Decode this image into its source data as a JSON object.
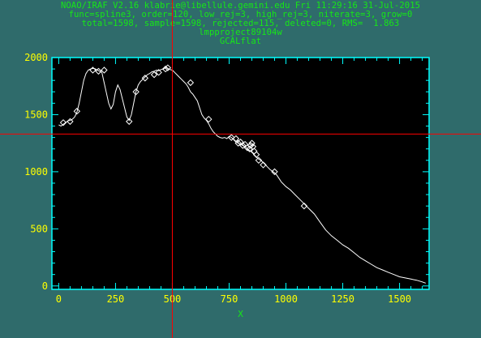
{
  "window": {
    "background": "#2f6b6b",
    "header_color": "#16e816",
    "cursor_color": "#ff0000",
    "axis_color": "#00ffff",
    "tick_label_color": "#ffff00",
    "xlabel_color": "#16e816"
  },
  "header": {
    "line1": "NOAO/IRAF V2.16 klabrie@libellule.gemini.edu Fri 11:29:16 31-Jul-2015",
    "line2": "func=spline3, order=120, low_rej=3, high_rej=3, niterate=3, grow=0",
    "line3": "total=1598, sample=1598, rejected=115, deleted=0, RMS=  1.863",
    "line4": "lmpproject89104w",
    "line5": "GCALflat"
  },
  "chart_data": {
    "type": "line",
    "xlabel": "X",
    "ylabel": "",
    "xlim": [
      -30,
      1630
    ],
    "ylim": [
      -30,
      2000
    ],
    "xticks": [
      0,
      250,
      500,
      750,
      1000,
      1250,
      1500
    ],
    "yticks": [
      0,
      500,
      1000,
      1500,
      2000
    ],
    "series": [
      {
        "x": [
          0,
          10,
          20,
          30,
          40,
          50,
          60,
          70,
          80,
          90,
          100,
          110,
          120,
          130,
          140,
          150,
          160,
          170,
          180,
          190,
          200,
          210,
          220,
          230,
          240,
          250,
          260,
          270,
          280,
          290,
          300,
          310,
          320,
          330,
          340,
          350,
          360,
          370,
          380,
          390,
          400,
          410,
          420,
          430,
          440,
          450,
          460,
          470,
          480,
          490,
          500,
          510,
          520,
          530,
          540,
          550,
          560,
          570,
          580,
          590,
          600,
          610,
          620,
          630,
          640,
          650,
          660,
          670,
          680,
          690,
          700,
          710,
          720,
          730,
          740,
          750,
          760,
          770,
          780,
          790,
          800,
          810,
          820,
          830,
          840,
          850,
          860,
          870,
          880,
          890,
          900,
          910,
          920,
          930,
          940,
          950,
          960,
          970,
          980,
          990,
          1000,
          1020,
          1040,
          1060,
          1080,
          1100,
          1125,
          1150,
          1175,
          1200,
          1225,
          1250,
          1275,
          1300,
          1325,
          1350,
          1375,
          1400,
          1425,
          1450,
          1475,
          1500,
          1525,
          1550,
          1575,
          1600,
          1615
        ],
        "y": [
          1410,
          1400,
          1415,
          1430,
          1445,
          1450,
          1460,
          1480,
          1520,
          1600,
          1700,
          1800,
          1860,
          1890,
          1900,
          1905,
          1902,
          1890,
          1880,
          1870,
          1780,
          1690,
          1600,
          1550,
          1590,
          1700,
          1760,
          1720,
          1640,
          1560,
          1480,
          1450,
          1500,
          1600,
          1700,
          1760,
          1790,
          1810,
          1830,
          1850,
          1860,
          1875,
          1880,
          1890,
          1885,
          1895,
          1900,
          1910,
          1905,
          1895,
          1890,
          1870,
          1850,
          1830,
          1810,
          1790,
          1770,
          1740,
          1700,
          1680,
          1650,
          1620,
          1560,
          1500,
          1470,
          1450,
          1420,
          1380,
          1350,
          1330,
          1310,
          1300,
          1295,
          1300,
          1290,
          1310,
          1300,
          1280,
          1260,
          1250,
          1240,
          1230,
          1220,
          1200,
          1185,
          1170,
          1150,
          1130,
          1110,
          1100,
          1080,
          1060,
          1040,
          1020,
          1005,
          990,
          970,
          940,
          910,
          890,
          870,
          840,
          800,
          760,
          720,
          680,
          630,
          560,
          490,
          440,
          400,
          360,
          330,
          290,
          250,
          220,
          190,
          160,
          140,
          120,
          100,
          80,
          70,
          60,
          50,
          35,
          25
        ]
      },
      {
        "x": [
          20,
          50,
          80,
          150,
          175,
          200,
          310,
          340,
          380,
          420,
          440,
          470,
          480,
          580,
          660,
          760,
          780,
          790,
          800,
          810,
          820,
          830,
          840,
          845,
          850,
          855,
          860,
          870,
          880,
          900,
          950,
          1080
        ],
        "y": [
          1430,
          1440,
          1530,
          1890,
          1880,
          1890,
          1440,
          1700,
          1820,
          1850,
          1870,
          1900,
          1910,
          1780,
          1460,
          1300,
          1290,
          1250,
          1260,
          1230,
          1240,
          1210,
          1200,
          1230,
          1250,
          1220,
          1180,
          1150,
          1100,
          1060,
          1000,
          700
        ]
      }
    ]
  },
  "cursor": {
    "x": 500,
    "y": 1330
  }
}
